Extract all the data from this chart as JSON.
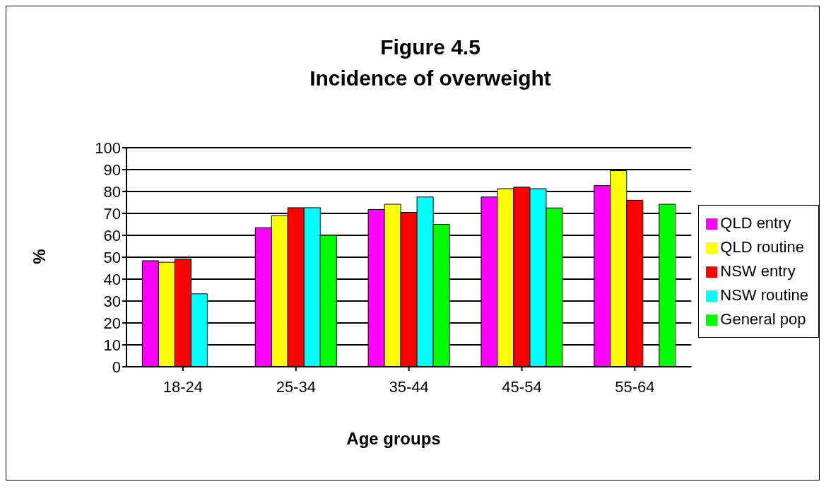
{
  "chart_data": {
    "type": "bar",
    "title": "Figure 4.5",
    "subtitle": "Incidence of overweight",
    "xlabel": "Age groups",
    "ylabel": "%",
    "categories": [
      "18-24",
      "25-34",
      "35-44",
      "45-54",
      "55-64"
    ],
    "series": [
      {
        "name": "QLD entry",
        "color": "#ff00ff",
        "values": [
          48.4,
          63.5,
          71.8,
          77.5,
          82.7
        ]
      },
      {
        "name": "QLD routine",
        "color": "#ffff00",
        "values": [
          47.7,
          69,
          74.2,
          81.3,
          89.5
        ]
      },
      {
        "name": "NSW entry",
        "color": "#ff0000",
        "values": [
          49.2,
          72.6,
          70.5,
          82,
          76
        ]
      },
      {
        "name": "NSW routine",
        "color": "#00ffff",
        "values": [
          33.3,
          72.6,
          77.5,
          81.3,
          null
        ]
      },
      {
        "name": "General pop",
        "color": "#00ff00",
        "values": [
          null,
          60,
          65,
          72.5,
          74.2
        ]
      }
    ],
    "ylim": [
      0,
      100
    ],
    "yticks": [
      0,
      10,
      20,
      30,
      40,
      50,
      60,
      70,
      80,
      90,
      100
    ],
    "grid": "y",
    "legend": "right"
  }
}
